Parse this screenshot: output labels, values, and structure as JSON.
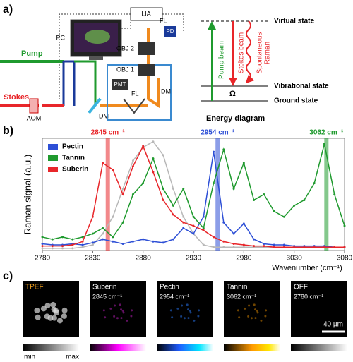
{
  "panel_a": {
    "label": "a)",
    "lia": "LIA",
    "fl_top": "FL",
    "pd": "PD",
    "pc": "PC",
    "obj2": "OBJ 2",
    "obj1": "OBJ 1",
    "pmt": "PMT",
    "fl_bottom": "FL",
    "dm_right": "DM",
    "pump": "Pump",
    "stokes": "Stokes",
    "dm_left": "DM",
    "aom": "AOM",
    "energy": {
      "virtual": "Virtual state",
      "pump_beam": "Pump beam",
      "stokes_beam": "Stokes beam",
      "spontaneous": "Spontaneous",
      "raman": "Raman",
      "vibrational": "Vibrational state",
      "omega": "Ω",
      "ground": "Ground state",
      "title": "Energy diagram"
    }
  },
  "panel_b": {
    "label": "b)"
  },
  "chart_data": {
    "type": "line",
    "xlabel": "Wavenumber (cm⁻¹)",
    "ylabel": "Raman  signal  (a.u.)",
    "legend": "upper left",
    "x": [
      2780,
      2790,
      2800,
      2810,
      2820,
      2830,
      2840,
      2850,
      2860,
      2870,
      2880,
      2890,
      2900,
      2910,
      2920,
      2930,
      2940,
      2950,
      2960,
      2970,
      2980,
      2990,
      3000,
      3010,
      3020,
      3030,
      3040,
      3050,
      3060,
      3070,
      3080
    ],
    "xlim": [
      2780,
      3080
    ],
    "xticks": [
      2780,
      2830,
      2880,
      2930,
      2980,
      3030,
      3080
    ],
    "ylim": [
      0,
      1
    ],
    "series": [
      {
        "color": "#b8b8b8",
        "values": [
          0.02,
          0.02,
          0.02,
          0.02,
          0.03,
          0.05,
          0.15,
          0.3,
          0.55,
          0.8,
          0.92,
          0.97,
          0.85,
          0.55,
          0.3,
          0.15,
          0.05,
          0.03,
          0.03,
          0.03,
          0.03,
          0.03,
          0.03,
          0.03,
          0.03,
          0.03,
          0.03,
          0.03,
          0.03,
          0.03,
          0.03
        ]
      },
      {
        "name": "Pectin",
        "color": "#2d4fd6",
        "values": [
          0.06,
          0.05,
          0.05,
          0.06,
          0.05,
          0.07,
          0.1,
          0.08,
          0.06,
          0.08,
          0.1,
          0.08,
          0.07,
          0.1,
          0.2,
          0.15,
          0.3,
          0.88,
          0.25,
          0.15,
          0.24,
          0.1,
          0.06,
          0.05,
          0.05,
          0.04,
          0.04,
          0.04,
          0.04,
          0.03,
          0.03
        ]
      },
      {
        "name": "Tannin",
        "color": "#1f9a2e",
        "values": [
          0.12,
          0.1,
          0.12,
          0.1,
          0.12,
          0.15,
          0.2,
          0.12,
          0.25,
          0.5,
          0.6,
          0.82,
          0.55,
          0.4,
          0.55,
          0.3,
          0.2,
          0.6,
          0.9,
          0.55,
          0.78,
          0.45,
          0.5,
          0.35,
          0.3,
          0.4,
          0.45,
          0.6,
          0.95,
          0.5,
          0.22
        ]
      },
      {
        "name": "Suberin",
        "color": "#e8262a",
        "values": [
          0.04,
          0.04,
          0.04,
          0.05,
          0.08,
          0.3,
          0.78,
          0.72,
          0.5,
          0.75,
          0.93,
          0.7,
          0.45,
          0.32,
          0.25,
          0.22,
          0.18,
          0.12,
          0.08,
          0.06,
          0.05,
          0.04,
          0.04,
          0.03,
          0.03,
          0.03,
          0.03,
          0.03,
          0.03,
          0.03,
          0.03
        ]
      }
    ],
    "annotations": [
      {
        "label": "2845 cm⁻¹",
        "x": 2845,
        "color": "#e8262a"
      },
      {
        "label": "2954 cm⁻¹",
        "x": 2954,
        "color": "#2d4fd6"
      },
      {
        "label": "3062 cm⁻¹",
        "x": 3062,
        "color": "#1f9a2e"
      }
    ]
  },
  "panel_c": {
    "label": "c)",
    "images": [
      {
        "title": "TPEF"
      },
      {
        "title": "Suberin",
        "subtitle": "2845 cm⁻¹"
      },
      {
        "title": "Pectin",
        "subtitle": "2954 cm⁻¹"
      },
      {
        "title": "Tannin",
        "subtitle": "3062 cm⁻¹"
      },
      {
        "title": "OFF",
        "subtitle": "2780 cm⁻¹"
      }
    ],
    "scale_bar": "40 µm",
    "colorbar_min": "min",
    "colorbar_max": "max"
  }
}
